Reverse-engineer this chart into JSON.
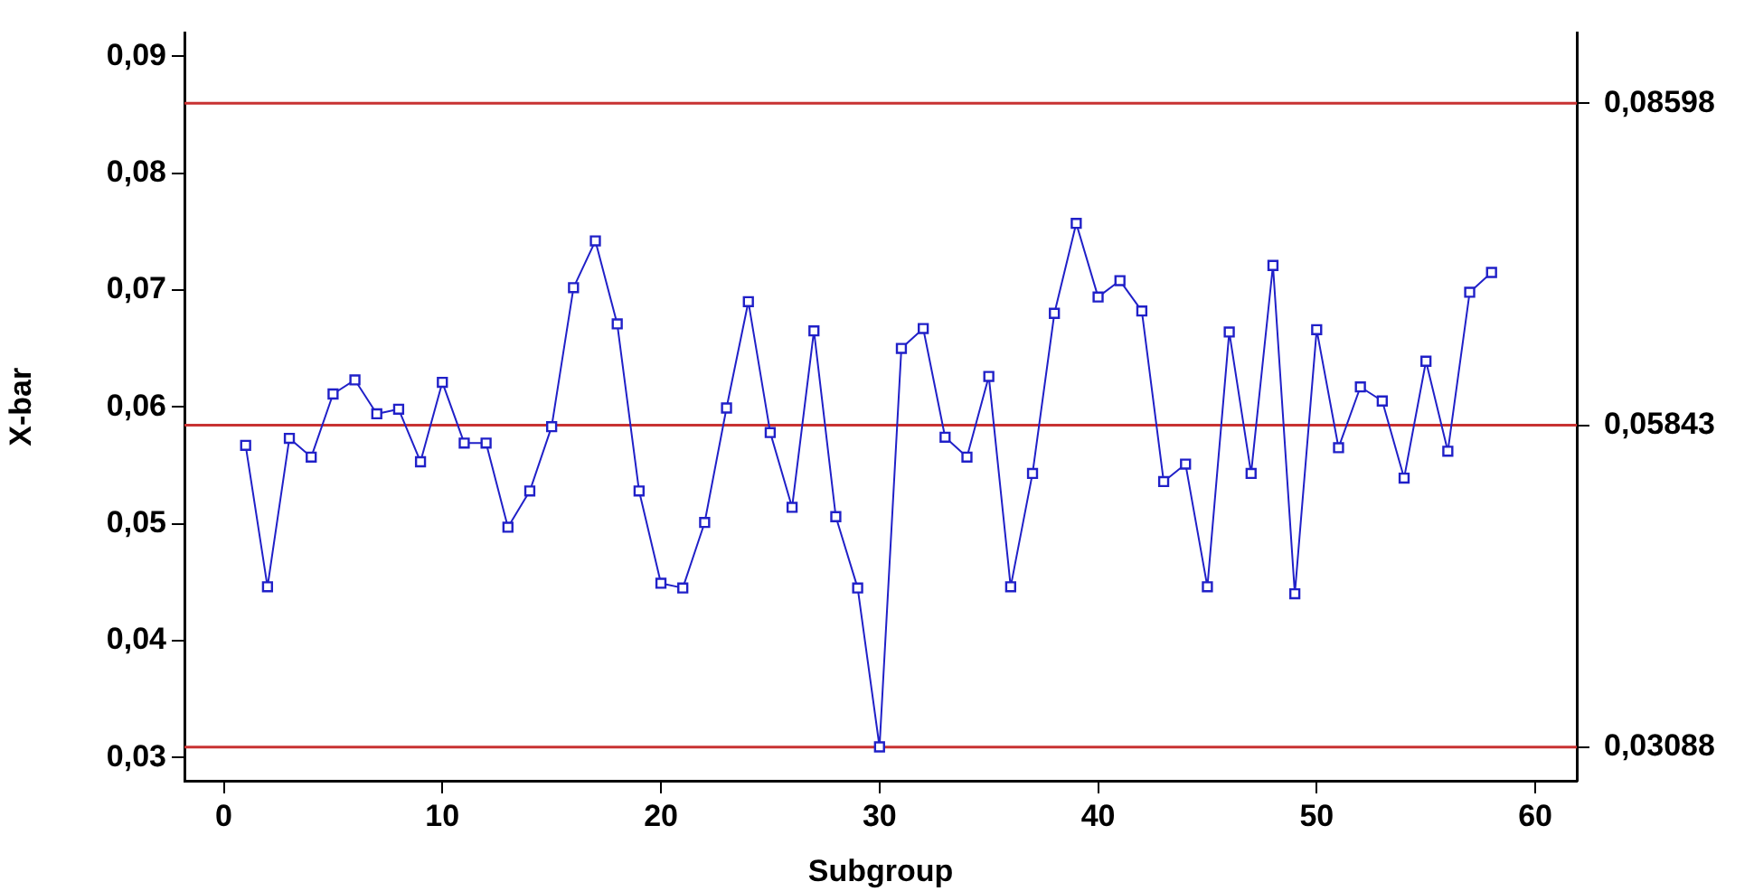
{
  "chart_data": {
    "type": "line",
    "xlabel": "Subgroup",
    "ylabel": "X-bar",
    "x": [
      1,
      2,
      3,
      4,
      5,
      6,
      7,
      8,
      9,
      10,
      11,
      12,
      13,
      14,
      15,
      16,
      17,
      18,
      19,
      20,
      21,
      22,
      23,
      24,
      25,
      26,
      27,
      28,
      29,
      30,
      31,
      32,
      33,
      34,
      35,
      36,
      37,
      38,
      39,
      40,
      41,
      42,
      43,
      44,
      45,
      46,
      47,
      48,
      49,
      50,
      51,
      52,
      53,
      54,
      55,
      56,
      57,
      58
    ],
    "series": [
      {
        "color": "#2020c8",
        "values": [
          0.0567,
          0.0446,
          0.0573,
          0.0557,
          0.0611,
          0.0623,
          0.0594,
          0.0598,
          0.0553,
          0.0621,
          0.0569,
          0.0569,
          0.0497,
          0.0528,
          0.0583,
          0.0702,
          0.0742,
          0.0671,
          0.0528,
          0.0449,
          0.0445,
          0.0501,
          0.0599,
          0.069,
          0.0578,
          0.0514,
          0.0665,
          0.0506,
          0.0445,
          0.0309,
          0.065,
          0.0667,
          0.0574,
          0.0557,
          0.0626,
          0.0446,
          0.0543,
          0.068,
          0.0757,
          0.0694,
          0.0708,
          0.0682,
          0.0536,
          0.0551,
          0.0446,
          0.0664,
          0.0543,
          0.0721,
          0.044,
          0.0666,
          0.0565,
          0.0617,
          0.0605,
          0.0539,
          0.0639,
          0.0562,
          0.0698,
          0.0715
        ]
      }
    ],
    "marker": "square",
    "line_style": "solid",
    "grid": false,
    "legend": false,
    "xlim": [
      -1.8,
      61.9
    ],
    "xticks": [
      0,
      10,
      20,
      30,
      40,
      50,
      60
    ],
    "ylim": [
      0.028,
      0.092
    ],
    "yticks": [
      {
        "value": 0.03,
        "label": "0,03"
      },
      {
        "value": 0.04,
        "label": "0,04"
      },
      {
        "value": 0.05,
        "label": "0,05"
      },
      {
        "value": 0.06,
        "label": "0,06"
      },
      {
        "value": 0.07,
        "label": "0,07"
      },
      {
        "value": 0.08,
        "label": "0,08"
      },
      {
        "value": 0.09,
        "label": "0,09"
      }
    ],
    "y2lim": [
      0.028,
      0.092
    ],
    "y2ticks": [
      {
        "value": 0.03088,
        "label": "0,03088"
      },
      {
        "value": 0.05843,
        "label": "0,05843"
      },
      {
        "value": 0.08598,
        "label": "0,08598"
      }
    ],
    "ref_lines": [
      {
        "axis": "y",
        "value": 0.08598,
        "color": "#c83232"
      },
      {
        "axis": "y",
        "value": 0.05843,
        "color": "#c83232"
      },
      {
        "axis": "y",
        "value": 0.03088,
        "color": "#c83232"
      }
    ]
  }
}
